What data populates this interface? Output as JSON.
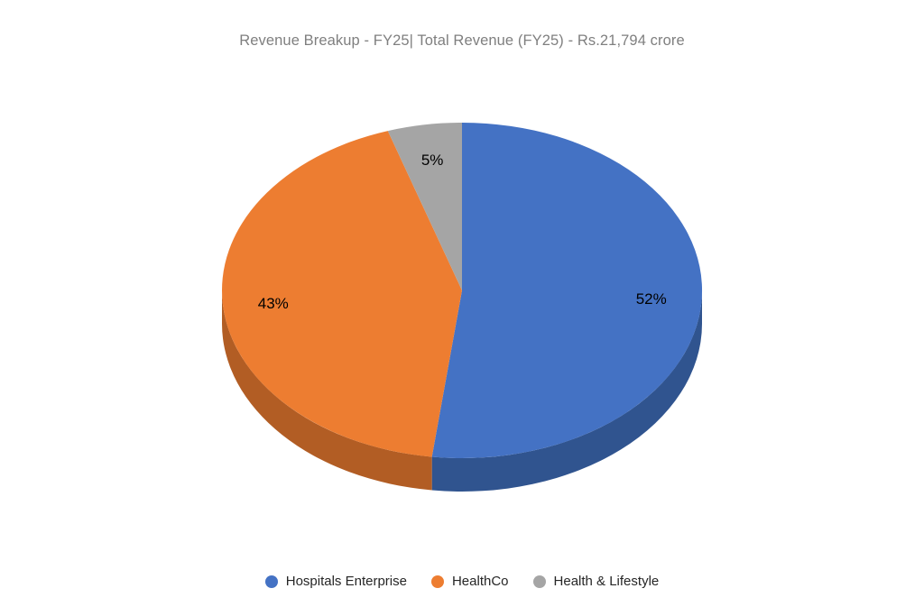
{
  "title": "Revenue Breakup - FY25| Total Revenue (FY25) - Rs.21,794 crore",
  "chart_data": {
    "type": "pie",
    "style": "3d",
    "title": "Revenue Breakup - FY25| Total Revenue (FY25) - Rs.21,794 crore",
    "total_revenue_text": "Rs.21,794 crore",
    "categories": [
      "Hospitals Enterprise",
      "HealthCo",
      "Health & Lifestyle"
    ],
    "values": [
      52,
      43,
      5
    ],
    "data_labels": [
      "52%",
      "43%",
      "5%"
    ],
    "colors": [
      "#4472C4",
      "#ED7D31",
      "#A5A5A5"
    ],
    "side_colors": [
      "#30548F",
      "#B25D24",
      "#7F7F7F"
    ],
    "start_angle_deg": 0,
    "direction": "clockwise",
    "legend_position": "bottom",
    "title_color": "#7F7F7F",
    "data_label_color": "#000000"
  }
}
